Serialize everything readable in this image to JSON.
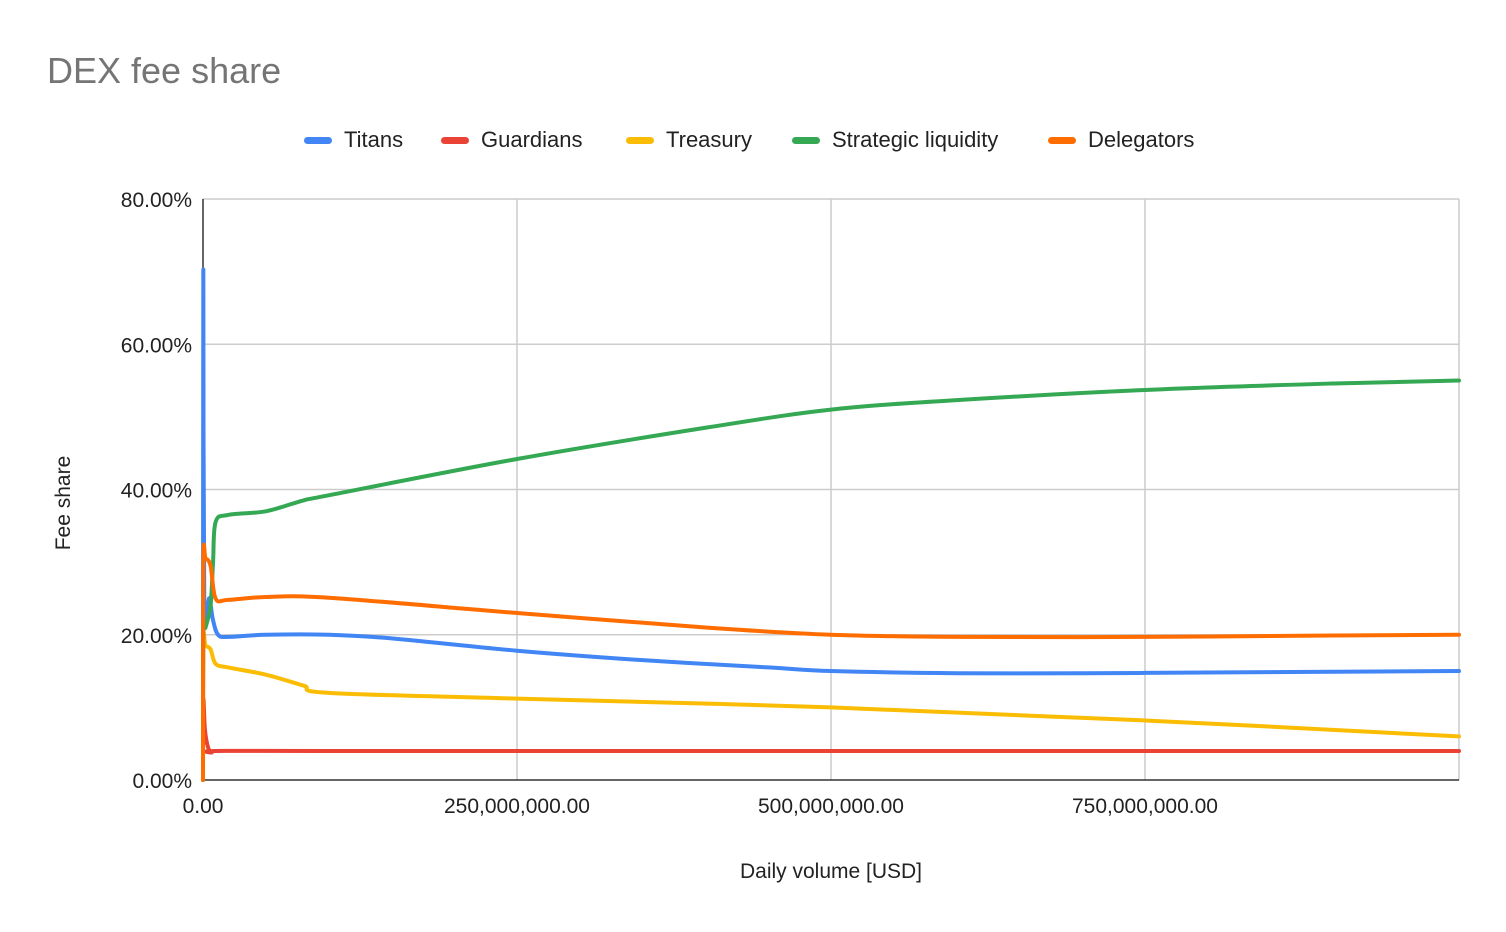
{
  "chart_data": {
    "type": "line",
    "title": "DEX fee share",
    "xlabel": "Daily volume [USD]",
    "ylabel": "Fee share",
    "xlim": [
      0,
      1000000000
    ],
    "ylim": [
      0,
      80
    ],
    "x_ticks": [
      0,
      250000000,
      500000000,
      750000000
    ],
    "x_tick_labels": [
      "0.00",
      "250,000,000.00",
      "500,000,000.00",
      "750,000,000.00"
    ],
    "y_ticks": [
      0,
      20,
      40,
      60,
      80
    ],
    "y_tick_labels": [
      "0.00%",
      "20.00%",
      "40.00%",
      "60.00%",
      "80.00%"
    ],
    "grid": true,
    "legend_position": "top",
    "series": [
      {
        "name": "Titans",
        "color": "#4285f4",
        "points": [
          [
            0,
            0
          ],
          [
            250000,
            70
          ],
          [
            1000000,
            25
          ],
          [
            5000000,
            25
          ],
          [
            8000000,
            22
          ],
          [
            12000000,
            20
          ],
          [
            20000000,
            19.7
          ],
          [
            50000000,
            20
          ],
          [
            100000000,
            20
          ],
          [
            150000000,
            19.5
          ],
          [
            250000000,
            17.8
          ],
          [
            350000000,
            16.5
          ],
          [
            450000000,
            15.5
          ],
          [
            500000000,
            15
          ],
          [
            600000000,
            14.7
          ],
          [
            700000000,
            14.7
          ],
          [
            800000000,
            14.8
          ],
          [
            900000000,
            14.9
          ],
          [
            1000000000,
            15
          ]
        ]
      },
      {
        "name": "Guardians",
        "color": "#ea4335",
        "points": [
          [
            0,
            0
          ],
          [
            250000,
            11
          ],
          [
            1500000,
            7
          ],
          [
            4000000,
            4.5
          ],
          [
            7000000,
            3.8
          ],
          [
            10000000,
            4
          ],
          [
            100000000,
            4
          ],
          [
            500000000,
            4
          ],
          [
            1000000000,
            4
          ]
        ]
      },
      {
        "name": "Treasury",
        "color": "#fbbc04",
        "points": [
          [
            0,
            0
          ],
          [
            250000,
            19
          ],
          [
            2000000,
            18.5
          ],
          [
            6000000,
            18
          ],
          [
            10000000,
            16
          ],
          [
            20000000,
            15.5
          ],
          [
            50000000,
            14.5
          ],
          [
            80000000,
            13
          ],
          [
            100000000,
            12
          ],
          [
            250000000,
            11.2
          ],
          [
            500000000,
            10
          ],
          [
            750000000,
            8.2
          ],
          [
            1000000000,
            6
          ]
        ]
      },
      {
        "name": "Strategic liquidity",
        "color": "#34a853",
        "points": [
          [
            0,
            0
          ],
          [
            250000,
            20
          ],
          [
            2000000,
            21
          ],
          [
            6000000,
            24
          ],
          [
            8000000,
            30
          ],
          [
            10000000,
            35.5
          ],
          [
            20000000,
            36.5
          ],
          [
            50000000,
            37
          ],
          [
            80000000,
            38.5
          ],
          [
            100000000,
            39.2
          ],
          [
            250000000,
            44.2
          ],
          [
            400000000,
            48.5
          ],
          [
            500000000,
            51
          ],
          [
            600000000,
            52.3
          ],
          [
            750000000,
            53.7
          ],
          [
            900000000,
            54.6
          ],
          [
            1000000000,
            55
          ]
        ]
      },
      {
        "name": "Delegators",
        "color": "#ff6d01",
        "points": [
          [
            0,
            0
          ],
          [
            250000,
            30
          ],
          [
            2000000,
            30.5
          ],
          [
            6000000,
            29.5
          ],
          [
            10000000,
            25
          ],
          [
            20000000,
            24.8
          ],
          [
            50000000,
            25.2
          ],
          [
            100000000,
            25.1
          ],
          [
            250000000,
            23
          ],
          [
            400000000,
            21
          ],
          [
            500000000,
            20
          ],
          [
            600000000,
            19.7
          ],
          [
            750000000,
            19.7
          ],
          [
            900000000,
            19.9
          ],
          [
            1000000000,
            20
          ]
        ]
      }
    ]
  }
}
